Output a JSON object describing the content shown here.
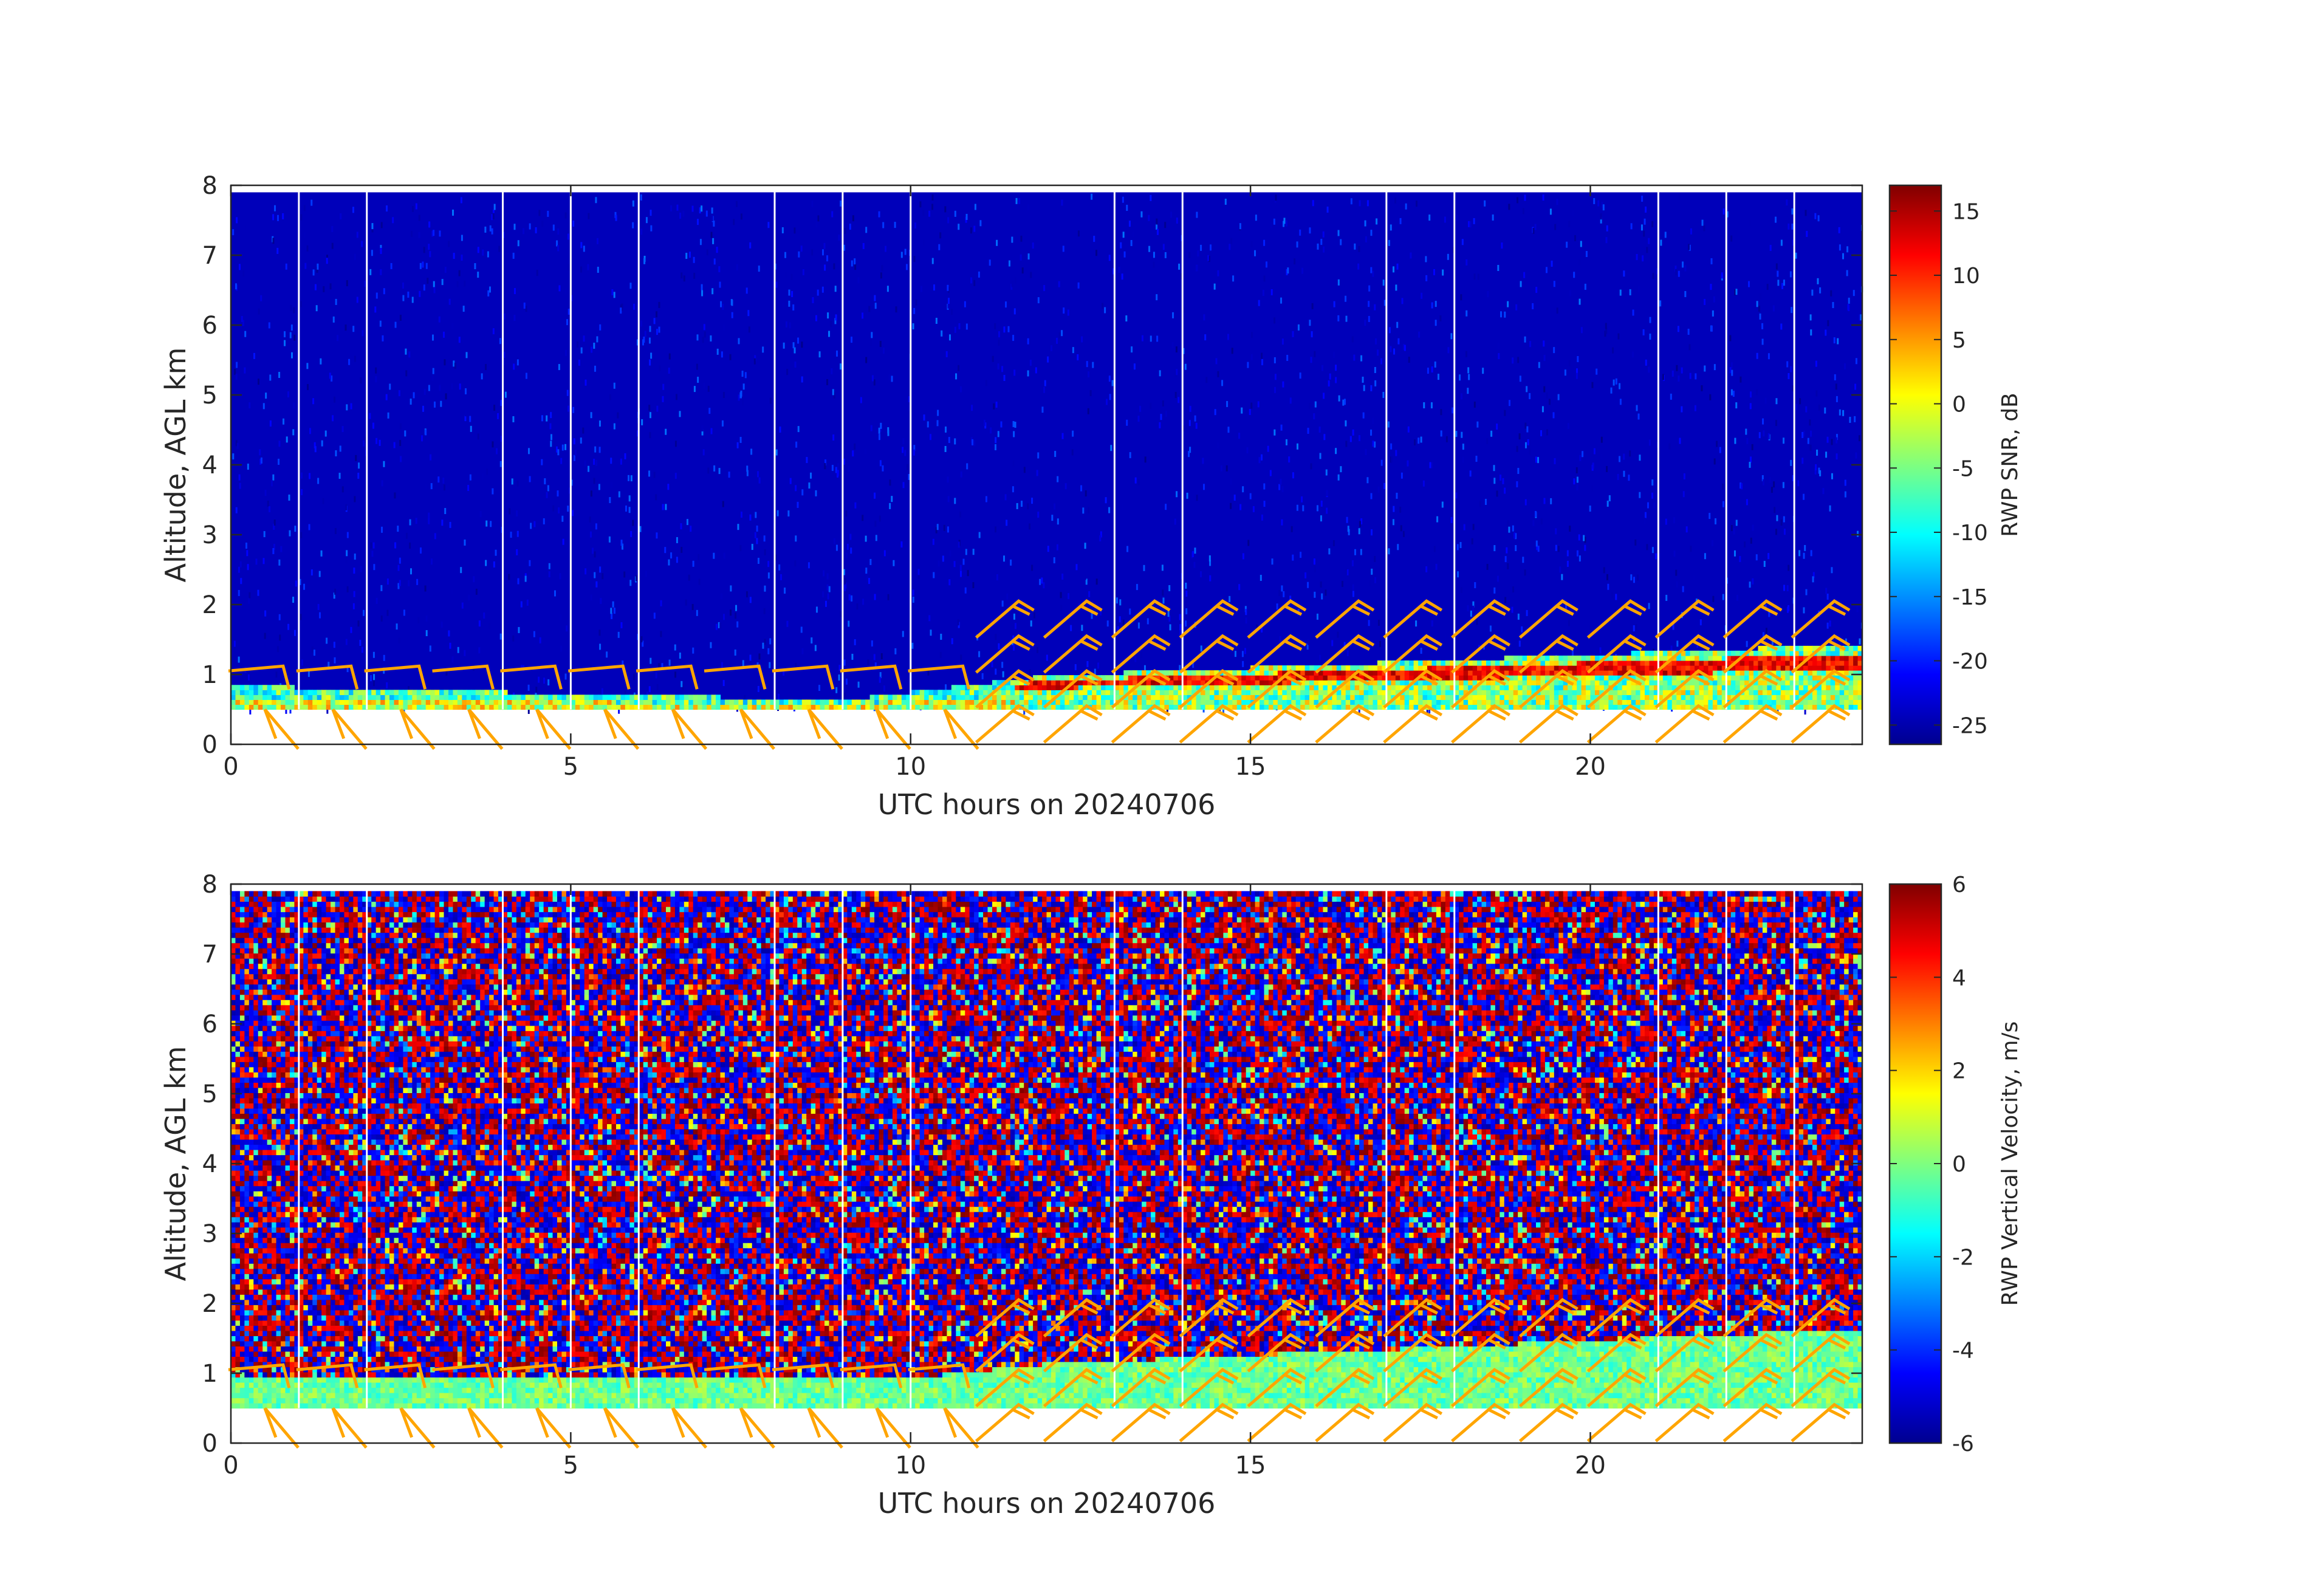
{
  "chart_data": [
    {
      "type": "heatmap",
      "title": "",
      "xlabel": "UTC hours on 20240706",
      "ylabel": "Altitude, AGL km",
      "xlim": [
        0,
        24
      ],
      "ylim": [
        0,
        8
      ],
      "xticks": [
        "0",
        "5",
        "10",
        "15",
        "20"
      ],
      "yticks": [
        "0",
        "1",
        "2",
        "3",
        "4",
        "5",
        "6",
        "7",
        "8"
      ],
      "colorbar": {
        "label": "RWP SNR, dB",
        "range": [
          -26.5,
          17
        ],
        "ticks": [
          "15",
          "10",
          "5",
          "0",
          "-5",
          "-10",
          "-15",
          "-20",
          "-25"
        ],
        "colormap": "jet"
      },
      "data_range_km": [
        0.5,
        7.9
      ],
      "background_level_db": -24,
      "boundary_layer": {
        "description": "enhanced SNR layer",
        "points": [
          {
            "hour": 0,
            "top_km": 0.8
          },
          {
            "hour": 9,
            "top_km": 0.6
          },
          {
            "hour": 12,
            "top_km": 0.95
          },
          {
            "hour": 24,
            "top_km": 1.4
          }
        ]
      },
      "data_gap_hours": [
        1,
        2,
        4,
        5,
        6,
        8,
        9,
        10,
        13,
        14,
        17,
        18,
        21,
        22,
        23
      ],
      "wind_barb_color": "#ffa500"
    },
    {
      "type": "heatmap",
      "title": "",
      "xlabel": "UTC hours on 20240706",
      "ylabel": "Altitude, AGL km",
      "xlim": [
        0,
        24
      ],
      "ylim": [
        0,
        8
      ],
      "xticks": [
        "0",
        "5",
        "10",
        "15",
        "20"
      ],
      "yticks": [
        "0",
        "1",
        "2",
        "3",
        "4",
        "5",
        "6",
        "7",
        "8"
      ],
      "colorbar": {
        "label": "RWP Vertical Velocity, m/s",
        "range": [
          -6,
          6
        ],
        "ticks": [
          "6",
          "4",
          "2",
          "0",
          "-2",
          "-4",
          "-6"
        ],
        "colormap": "jet"
      },
      "data_range_km": [
        0.5,
        7.9
      ],
      "near_zero_layer": {
        "points": [
          {
            "hour": 0,
            "top_km": 0.9
          },
          {
            "hour": 10,
            "top_km": 0.9
          },
          {
            "hour": 12,
            "top_km": 1.1
          },
          {
            "hour": 24,
            "top_km": 1.6
          }
        ]
      },
      "data_gap_hours": [
        1,
        2,
        4,
        5,
        6,
        8,
        9,
        10,
        13,
        14,
        17,
        18,
        21,
        22,
        23
      ],
      "wind_barb_color": "#ffa500"
    }
  ]
}
